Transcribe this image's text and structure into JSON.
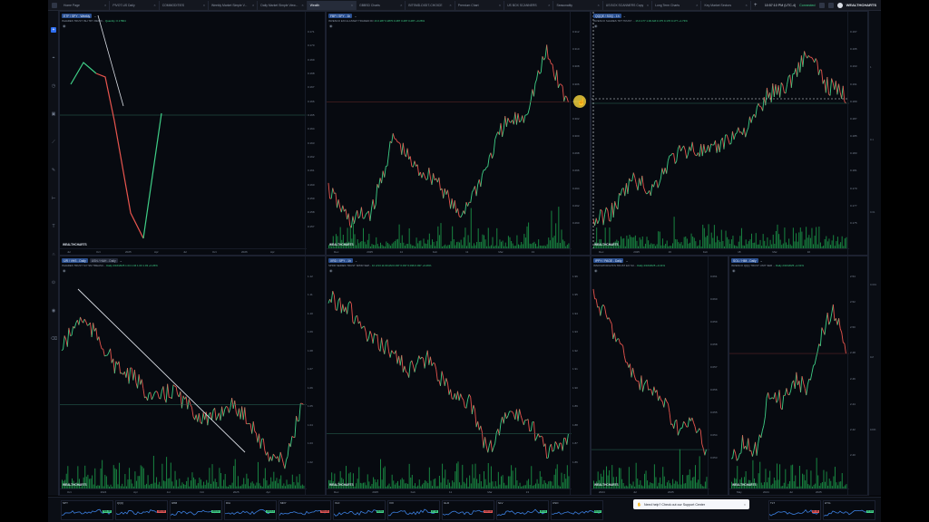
{
  "tabs": [
    {
      "label": "Home Page",
      "active": false
    },
    {
      "label": "PIVOT-US Daily",
      "active": false
    },
    {
      "label": "COMMODITIES",
      "active": false
    },
    {
      "label": "Weekly Market Simple V...",
      "active": false
    },
    {
      "label": "Daily Market Simple View...",
      "active": false
    },
    {
      "label": "Wealth",
      "active": true
    },
    {
      "label": "GBBSD Charts",
      "active": false
    },
    {
      "label": "BITSMD-DIGIT-CHOICE",
      "active": false
    },
    {
      "label": "Premium Chart",
      "active": false
    },
    {
      "label": "US BOX SCANNERS",
      "active": false
    },
    {
      "label": "Seasonality",
      "active": false
    },
    {
      "label": "US BOX SCANNERS Copy",
      "active": false
    },
    {
      "label": "Long Term Charts",
      "active": false
    },
    {
      "label": "Key Market Sectors",
      "active": false
    }
  ],
  "header": {
    "time": "10:57:10 PM (UTC-4)",
    "status": "Connected",
    "logo": "WEALTHCHARTS"
  },
  "panels": [
    {
      "id": "p1",
      "chip": "ETF / SPY - Weekly",
      "chip2": "",
      "sub": "ISHARES TRUST ISH TRY RESID...",
      "subval": "Quantity: 0.17804"
    },
    {
      "id": "p2",
      "chip": "FBP / SPY - 1h",
      "chip2": "",
      "sub": "INVESCO EXCH-ASSET TRADED FD",
      "subval": "1h  0.287  0.2870  0.287  0.287  0.287  +0.26%"
    },
    {
      "id": "p3",
      "chip": "QQQE / SOQ - 1h",
      "chip2": "",
      "sub": "INVESCO SHARES TRT TRUST ...",
      "subval": "1h  0.177  1.00 AM  0.175  0.176  0.177  +1.73%"
    },
    {
      "id": "p4",
      "chip": "IJR / VHS - Daily",
      "chip2": "USN / HAH - Daily",
      "sub": "ISHARES TRUST S P SM TREASU...",
      "subval": "Daily  2/16/2025  1.04  1.04  1.03  1.03  +0.26%"
    },
    {
      "id": "p5",
      "chip": "XRD / SPY - 1h",
      "chip2": "",
      "sub": "SPDR SERIES TRUST SPDR SEP...",
      "subval": "1h  2/13 11:00 AM  0.037  0.037  0.036  0.037  +0.26%"
    },
    {
      "id": "p6",
      "chip": "IPPY / PAGE - Daily",
      "chip2": "",
      "sub": "INNOVATOR ETFS TRUST EO SU...",
      "subval": "Daily  2/16/2025  +0.41%"
    },
    {
      "id": "p7",
      "chip": "SOL / HIM - Daily",
      "chip2": "",
      "sub": "INVESCO QQQ TRUST UNIT SER ...",
      "subval": "Daily  2/16/2025  +1.61%"
    }
  ],
  "brand_label": "WEALTHCHARTS",
  "mini_charts": [
    {
      "label": "SPY",
      "value": "521.36"
    },
    {
      "label": "QQQ",
      "value": "460.90"
    },
    {
      "label": "IWM",
      "value": "200.12"
    },
    {
      "label": "DIA",
      "value": "420.14"
    },
    {
      "label": "MDY",
      "value": "550.23"
    },
    {
      "label": "XLF",
      "value": "40.81"
    },
    {
      "label": "VIX",
      "value": "17.42"
    },
    {
      "label": "GLD",
      "value": "210.44"
    },
    {
      "label": "SLV",
      "value": "26.11"
    },
    {
      "label": "USO",
      "value": "80.12"
    },
    {
      "label": "UNG",
      "value": "14.30"
    },
    {
      "label": "FXE",
      "value": "100.21"
    },
    {
      "label": "FXY",
      "value": "61.02"
    },
    {
      "label": "TLT",
      "value": "91.44"
    },
    {
      "label": "HYG",
      "value": "77.15"
    },
    {
      "label": "LQD",
      "value": "104.33"
    }
  ],
  "toast": {
    "text": "Need help? Check out our Support Center",
    "close": "×"
  },
  "colors": {
    "up": "#3fcf87",
    "down": "#e8554e",
    "accent": "#2d6df0",
    "volume": "#1fae52",
    "bg": "#070a10"
  },
  "icons": {
    "new_tab": "plus-icon",
    "close_tab": "close-icon",
    "sidebar": [
      "plus-icon",
      "crosshair-icon",
      "clock-icon",
      "calendar-icon",
      "trendline-icon",
      "pencil-icon",
      "ruler-icon",
      "text-icon",
      "magnet-icon",
      "lock-icon",
      "eye-icon",
      "trash-icon"
    ]
  }
}
